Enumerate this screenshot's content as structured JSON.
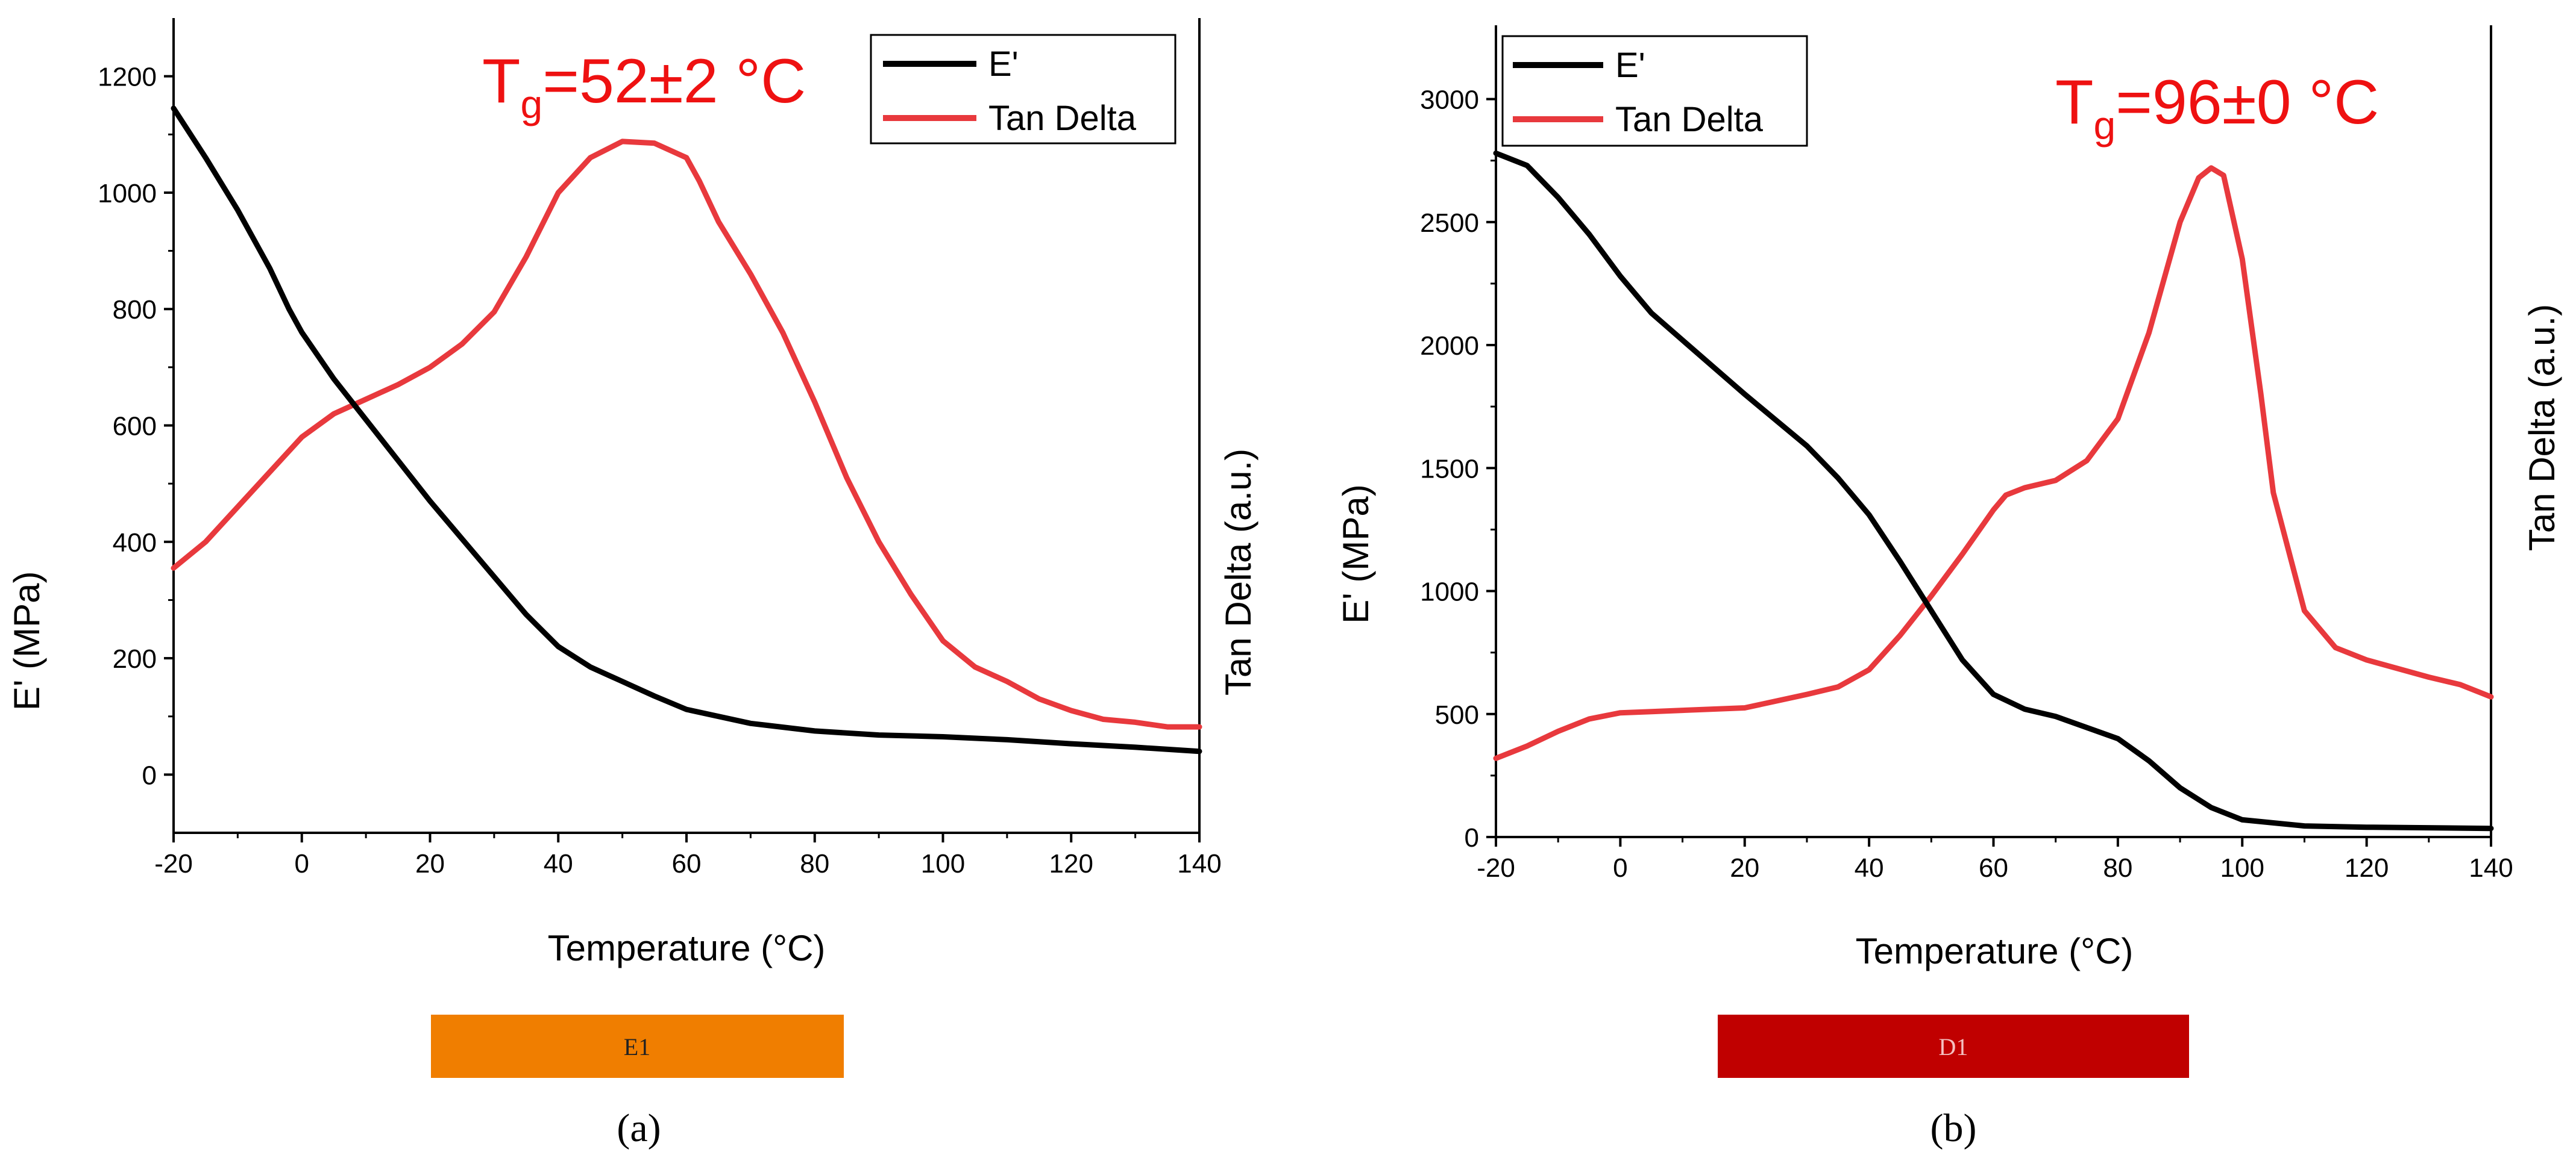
{
  "colors": {
    "storage": "#000000",
    "tan": "#e8393d",
    "tg_text": "#ee1111"
  },
  "chart_data": [
    {
      "type": "line",
      "panel": "a",
      "panel_label": "(a)",
      "xlabel": "Temperature (°C)",
      "ylabel": "E' (MPa)",
      "y2label": "Tan Delta (a.u.)",
      "xlim": [
        -20,
        140
      ],
      "ylim": [
        -100,
        1300
      ],
      "xticks": [
        -20,
        0,
        20,
        40,
        60,
        80,
        100,
        120,
        140
      ],
      "xtick_labels": [
        "-20",
        "0",
        "20",
        "40",
        "60",
        "80",
        "100",
        "120",
        "140"
      ],
      "yticks": [
        0,
        200,
        400,
        600,
        800,
        1000,
        1200
      ],
      "ytick_labels": [
        "0",
        "200",
        "400",
        "600",
        "800",
        "1000",
        "1200"
      ],
      "legend_position": "top-right",
      "tg_label": {
        "main": "T",
        "sub": "g",
        "rest": "=52±2 °C"
      },
      "sample_bar": {
        "label": "E1",
        "color": "#f07e00",
        "text_color": "#222222"
      },
      "series": [
        {
          "name": "E'",
          "axis": "left",
          "color": "#000000",
          "x": [
            -20,
            -15,
            -10,
            -5,
            -2,
            0,
            5,
            10,
            15,
            20,
            25,
            30,
            35,
            40,
            45,
            50,
            55,
            60,
            70,
            80,
            90,
            100,
            110,
            120,
            130,
            140
          ],
          "y": [
            1145,
            1060,
            970,
            870,
            800,
            760,
            680,
            610,
            540,
            470,
            405,
            340,
            275,
            220,
            185,
            160,
            135,
            112,
            88,
            75,
            68,
            65,
            60,
            53,
            47,
            40
          ]
        },
        {
          "name": "Tan Delta",
          "axis": "right",
          "color": "#e8393d",
          "x": [
            -20,
            -15,
            -10,
            -5,
            0,
            5,
            10,
            15,
            20,
            25,
            30,
            35,
            40,
            45,
            50,
            55,
            60,
            62,
            65,
            70,
            75,
            80,
            85,
            90,
            95,
            100,
            105,
            110,
            115,
            120,
            125,
            130,
            135,
            140
          ],
          "y": [
            355,
            400,
            460,
            520,
            580,
            620,
            645,
            670,
            700,
            740,
            795,
            890,
            1000,
            1060,
            1088,
            1085,
            1060,
            1020,
            950,
            860,
            760,
            640,
            510,
            400,
            310,
            230,
            185,
            160,
            130,
            110,
            95,
            90,
            82,
            82
          ]
        }
      ]
    },
    {
      "type": "line",
      "panel": "b",
      "panel_label": "(b)",
      "xlabel": "Temperature (°C)",
      "ylabel": "E' (MPa)",
      "y2label": "Tan Delta (a.u.)",
      "xlim": [
        -20,
        140
      ],
      "ylim": [
        0,
        3300
      ],
      "xticks": [
        -20,
        0,
        20,
        40,
        60,
        80,
        100,
        120,
        140
      ],
      "xtick_labels": [
        "-20",
        "0",
        "20",
        "40",
        "60",
        "80",
        "100",
        "120",
        "140"
      ],
      "yticks": [
        0,
        500,
        1000,
        1500,
        2000,
        2500,
        3000
      ],
      "ytick_labels": [
        "0",
        "500",
        "1000",
        "1500",
        "2000",
        "2500",
        "3000"
      ],
      "legend_position": "top-left",
      "tg_label": {
        "main": "T",
        "sub": "g",
        "rest": "=96±0 °C"
      },
      "sample_bar": {
        "label": "D1",
        "color": "#c00000",
        "text_color": "#f4c0c0"
      },
      "series": [
        {
          "name": "E'",
          "axis": "left",
          "color": "#000000",
          "x": [
            -20,
            -15,
            -10,
            -5,
            0,
            5,
            10,
            20,
            30,
            35,
            40,
            45,
            50,
            55,
            60,
            65,
            70,
            80,
            85,
            90,
            95,
            100,
            110,
            120,
            140
          ],
          "y": [
            2780,
            2730,
            2600,
            2450,
            2280,
            2130,
            2020,
            1800,
            1590,
            1460,
            1310,
            1120,
            920,
            720,
            580,
            520,
            490,
            400,
            310,
            200,
            120,
            70,
            45,
            40,
            35
          ]
        },
        {
          "name": "Tan Delta",
          "axis": "right",
          "color": "#e8393d",
          "x": [
            -20,
            -15,
            -10,
            -5,
            0,
            5,
            10,
            20,
            30,
            35,
            40,
            45,
            50,
            55,
            60,
            62,
            65,
            70,
            75,
            80,
            85,
            88,
            90,
            93,
            95,
            97,
            100,
            103,
            105,
            110,
            115,
            120,
            130,
            135,
            140
          ],
          "y": [
            320,
            370,
            430,
            480,
            505,
            510,
            515,
            525,
            580,
            610,
            680,
            820,
            980,
            1150,
            1330,
            1390,
            1420,
            1450,
            1530,
            1700,
            2050,
            2320,
            2500,
            2680,
            2720,
            2690,
            2350,
            1800,
            1400,
            920,
            770,
            720,
            650,
            620,
            570
          ]
        }
      ]
    }
  ]
}
